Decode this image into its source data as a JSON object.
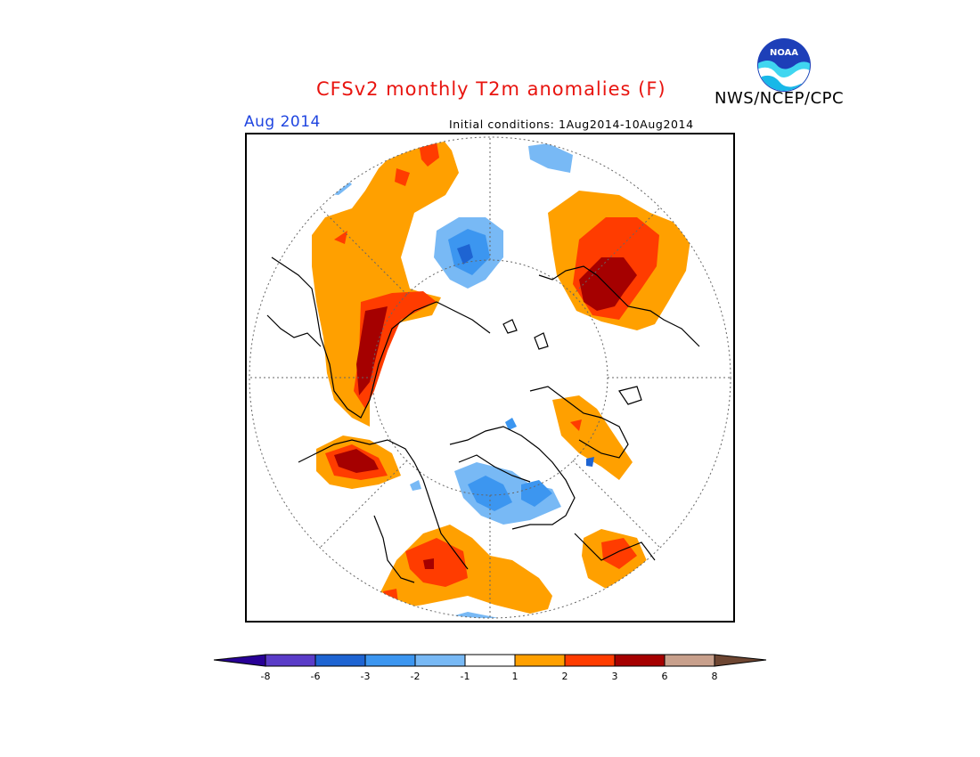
{
  "header": {
    "title": "CFSv2 monthly T2m anomalies (F)",
    "agency": "NWS/NCEP/CPC",
    "logo_text": "NOAA"
  },
  "subheader": {
    "month": "Aug 2014",
    "initial_conditions": "Initial conditions: 1Aug2014-10Aug2014"
  },
  "map": {
    "projection": "north-polar-stereographic",
    "variable": "T2m anomaly",
    "units": "F",
    "regions": [
      {
        "area": "western Russia / Scandinavia",
        "anomaly_class": "warm",
        "max_level": "6"
      },
      {
        "area": "eastern Siberia / Bering",
        "anomaly_class": "warm",
        "max_level": "6"
      },
      {
        "area": "Alaska / NW Canada",
        "anomaly_class": "warm",
        "max_level": "2"
      },
      {
        "area": "western United States",
        "anomaly_class": "warm",
        "max_level": "3"
      },
      {
        "area": "Europe / Mediterranean",
        "anomaly_class": "warm",
        "max_level": "6"
      },
      {
        "area": "NW Africa",
        "anomaly_class": "warm",
        "max_level": "3"
      },
      {
        "area": "Hudson Bay / Greenland",
        "anomaly_class": "cold",
        "max_level": "-3"
      },
      {
        "area": "Central Siberia",
        "anomaly_class": "cold",
        "max_level": "-6"
      }
    ]
  },
  "colorbar": {
    "labels": [
      "-8",
      "-6",
      "-3",
      "-2",
      "-1",
      "1",
      "2",
      "3",
      "6",
      "8"
    ],
    "colors": {
      "lt_-8": "#280096",
      "-8_-6": "#5a3cc8",
      "-6_-3": "#1e64d2",
      "-3_-2": "#3c96f0",
      "-2_-1": "#78b9f5",
      "-1_1": "#ffffff",
      "1_2": "#ffa000",
      "2_3": "#ff3c00",
      "3_6": "#a50000",
      "6_8": "#c8a08c",
      "gt_8": "#6e4632"
    }
  }
}
